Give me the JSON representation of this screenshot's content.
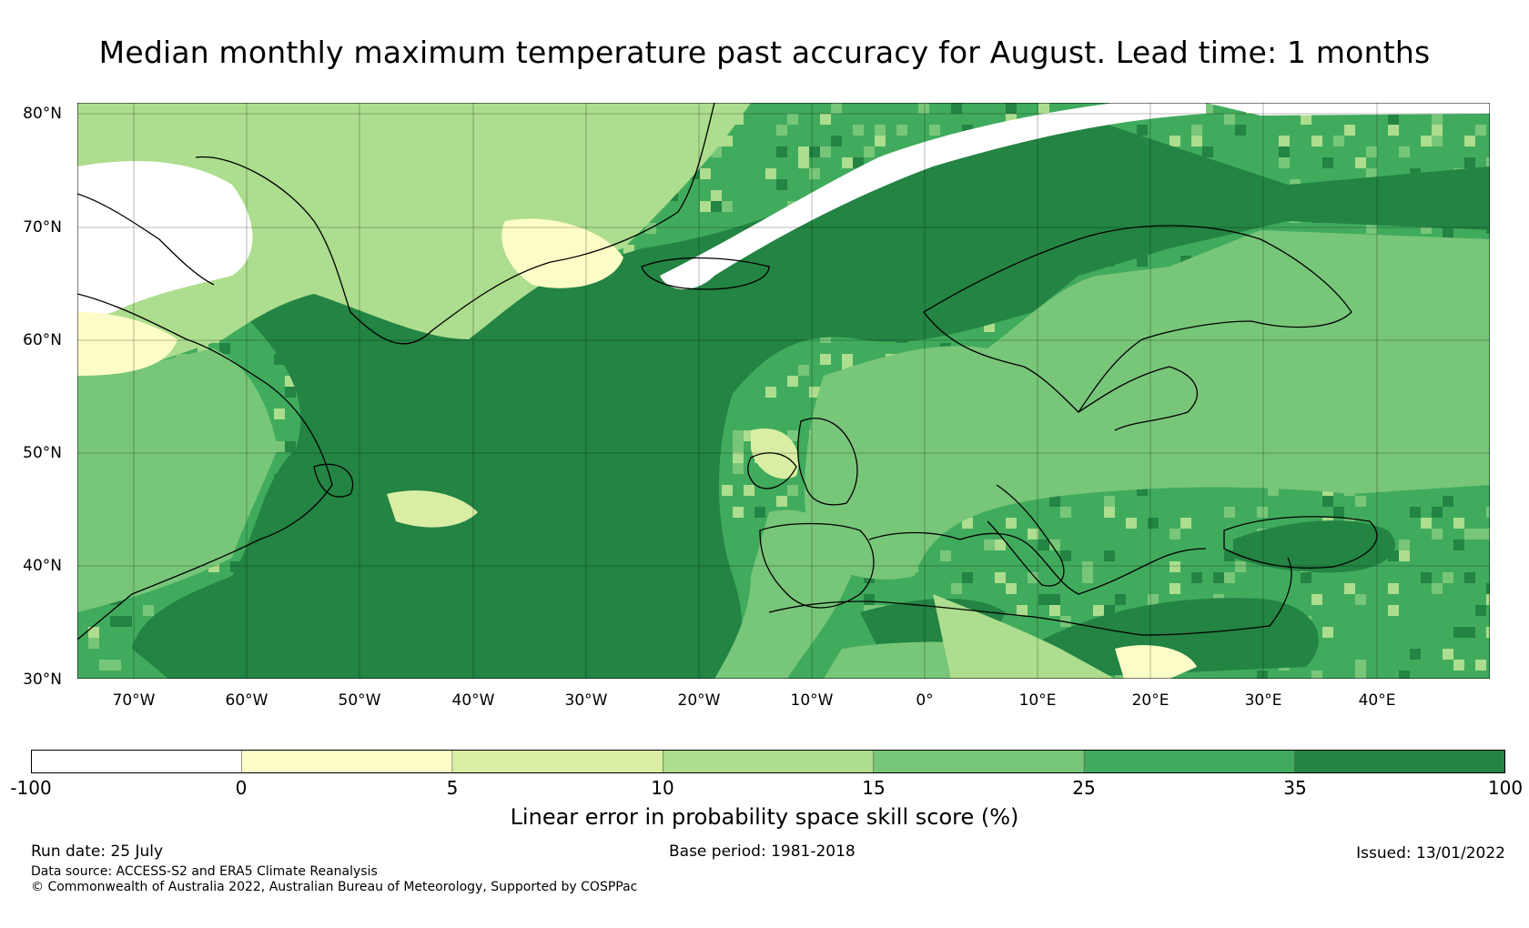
{
  "title": "Median monthly maximum temperature past accuracy for August. Lead time: 1 months",
  "map": {
    "lat_ticks": [
      "80°N",
      "70°N",
      "60°N",
      "50°N",
      "40°N",
      "30°N"
    ],
    "lon_ticks": [
      "70°W",
      "60°W",
      "50°W",
      "40°W",
      "30°W",
      "20°W",
      "10°W",
      "0°",
      "10°E",
      "20°E",
      "30°E",
      "40°E"
    ],
    "lon_range": [
      -75,
      50
    ],
    "lat_range": [
      30,
      81
    ],
    "gridlines": true
  },
  "colorbar": {
    "tick_labels": [
      "-100",
      "0",
      "5",
      "10",
      "15",
      "25",
      "35",
      "100"
    ],
    "colors": [
      "#ffffff",
      "#fcfcc7",
      "#d9eea4",
      "#addd8e",
      "#78c679",
      "#41ab5d",
      "#238443"
    ],
    "label": "Linear error in probability space skill score (%)"
  },
  "footer": {
    "run_date": "Run date: 25 July",
    "base_period": "Base period: 1981-2018",
    "issued": "Issued: 13/01/2022",
    "data_source": "Data source: ACCESS-S2 and ERA5 Climate Reanalysis",
    "copyright": "© Commonwealth of Australia 2022, Australian Bureau of Meteorology, Supported by COSPPac"
  }
}
